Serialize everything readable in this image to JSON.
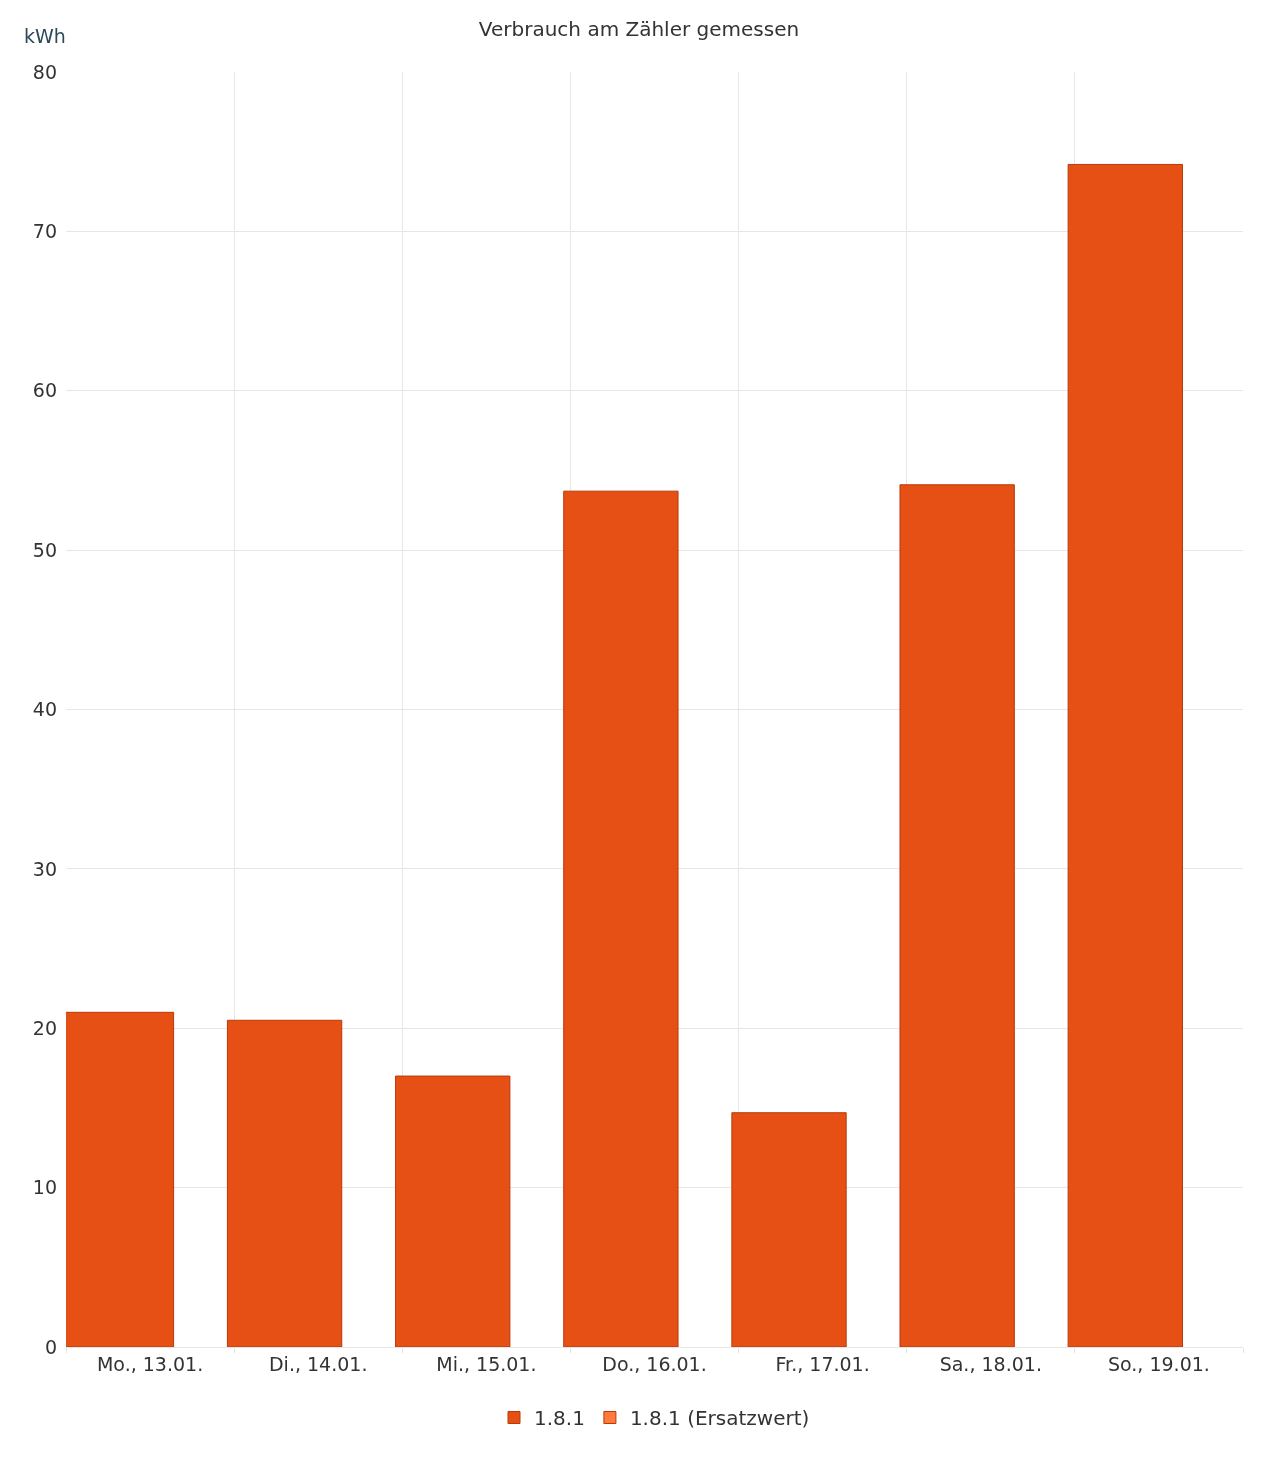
{
  "chart_data": {
    "type": "bar",
    "title": "Verbrauch am Zähler gemessen",
    "ylabel": "kWh",
    "categories": [
      "Mo., 13.01.",
      "Di., 14.01.",
      "Mi., 15.01.",
      "Do., 16.01.",
      "Fr., 17.01.",
      "Sa., 18.01.",
      "So., 19.01."
    ],
    "series": [
      {
        "name": "1.8.1",
        "color": "#e65015",
        "values": [
          21.0,
          20.5,
          17.0,
          53.7,
          14.7,
          54.1,
          74.2
        ]
      },
      {
        "name": "1.8.1 (Ersatzwert)",
        "color": "#ff7a3d",
        "values": [
          null,
          null,
          null,
          null,
          null,
          null,
          null
        ]
      }
    ],
    "ylim": [
      0,
      80
    ],
    "yticks": [
      0,
      10,
      20,
      30,
      40,
      50,
      60,
      70,
      80
    ],
    "grid": true,
    "legend": "bottom"
  }
}
